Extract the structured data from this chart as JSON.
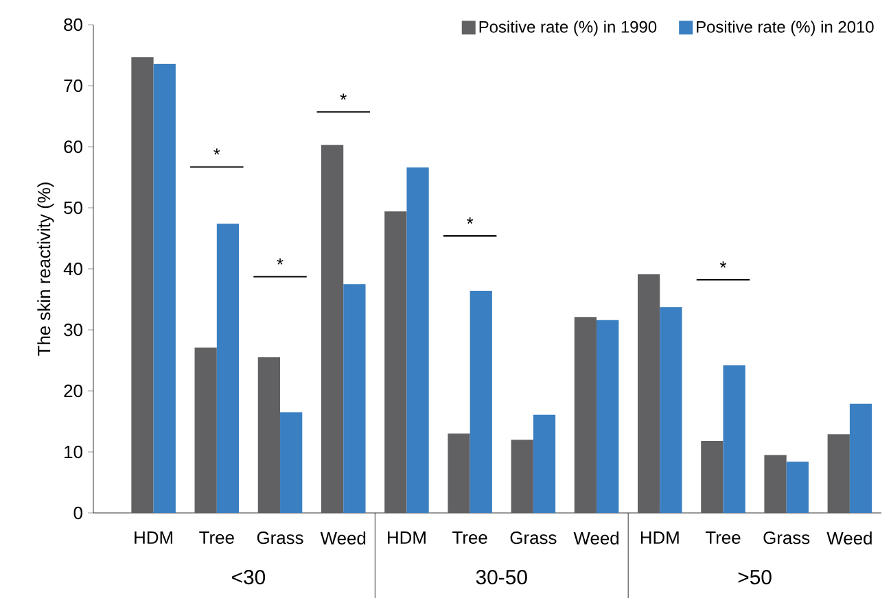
{
  "chart_data": {
    "type": "bar",
    "ylabel": "The skin reactivity (%)",
    "categories": [
      "HDM",
      "Tree",
      "Grass",
      "Weed",
      "HDM",
      "Tree",
      "Grass",
      "Weed",
      "HDM",
      "Tree",
      "Grass",
      "Weed"
    ],
    "series": [
      {
        "name": "Positive rate (%) in 1990",
        "color": "#616163",
        "values": [
          74.7,
          27.1,
          25.5,
          60.3,
          49.4,
          13.0,
          12.0,
          32.1,
          39.1,
          11.8,
          9.5,
          12.9
        ]
      },
      {
        "name": "Positive rate (%) in 2010",
        "color": "#3a7fc1",
        "values": [
          73.6,
          47.4,
          16.5,
          37.5,
          56.6,
          36.4,
          16.1,
          31.6,
          33.7,
          24.2,
          8.4,
          17.9
        ]
      }
    ],
    "ylim": [
      0,
      80
    ],
    "yticks": [
      0,
      10,
      20,
      30,
      40,
      50,
      60,
      70,
      80
    ],
    "grid": false,
    "legend": "top right",
    "annotations": [
      "<30",
      "30-50",
      ">50",
      "*",
      "*",
      "*",
      "*",
      "*"
    ]
  }
}
